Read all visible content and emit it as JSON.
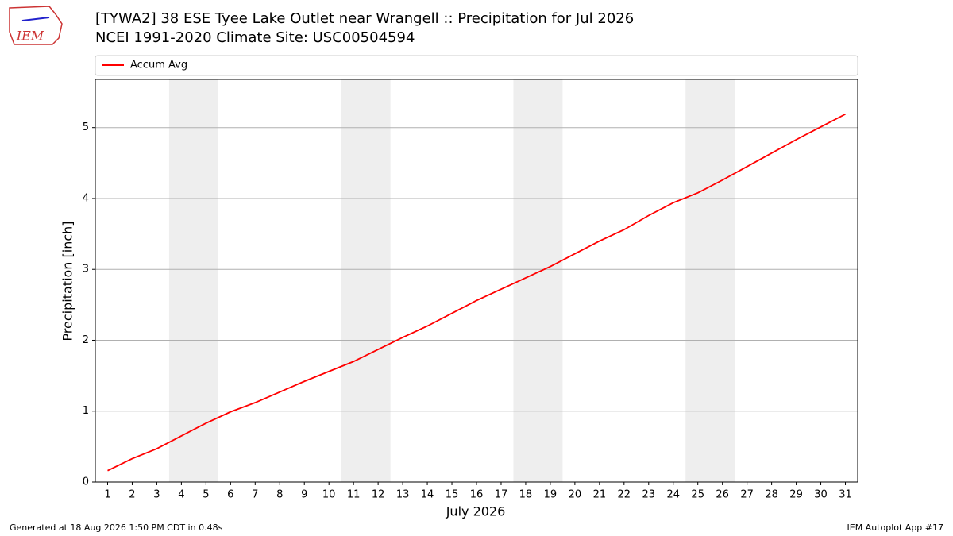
{
  "chart_data": {
    "type": "line",
    "title": "[TYWA2] 38 ESE Tyee Lake Outlet near Wrangell :: Precipitation for Jul 2026",
    "subtitle": "NCEI 1991-2020 Climate Site: USC00504594",
    "logo": "IEM",
    "xlabel": "July 2026",
    "ylabel": "Precipitation [inch]",
    "x": [
      1,
      2,
      3,
      4,
      5,
      6,
      7,
      8,
      9,
      10,
      11,
      12,
      13,
      14,
      15,
      16,
      17,
      18,
      19,
      20,
      21,
      22,
      23,
      24,
      25,
      26,
      27,
      28,
      29,
      30,
      31
    ],
    "series": [
      {
        "name": "Accum Avg",
        "color": "#ff0000",
        "values": [
          0.16,
          0.33,
          0.47,
          0.65,
          0.83,
          0.99,
          1.12,
          1.27,
          1.42,
          1.56,
          1.7,
          1.87,
          2.04,
          2.2,
          2.38,
          2.56,
          2.72,
          2.88,
          3.04,
          3.22,
          3.4,
          3.56,
          3.76,
          3.94,
          4.08,
          4.26,
          4.45,
          4.64,
          4.83,
          5.01,
          5.19
        ]
      }
    ],
    "weekend_bands": [
      [
        3.5,
        5.5
      ],
      [
        10.5,
        12.5
      ],
      [
        17.5,
        19.5
      ],
      [
        24.5,
        26.5
      ]
    ],
    "band_color": "#eeeeee",
    "xlim": [
      0.5,
      31.5
    ],
    "ylim": [
      0,
      5.68
    ],
    "xticks": [
      1,
      2,
      3,
      4,
      5,
      6,
      7,
      8,
      9,
      10,
      11,
      12,
      13,
      14,
      15,
      16,
      17,
      18,
      19,
      20,
      21,
      22,
      23,
      24,
      25,
      26,
      27,
      28,
      29,
      30,
      31
    ],
    "yticks": [
      0,
      1,
      2,
      3,
      4,
      5
    ],
    "grid": true,
    "legend": "top",
    "footer_left": "Generated at 18 Aug 2026 1:50 PM CDT in 0.48s",
    "footer_right": "IEM Autoplot App #17"
  }
}
